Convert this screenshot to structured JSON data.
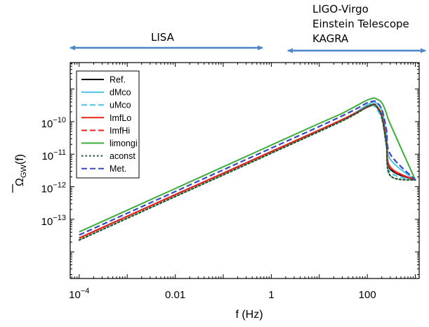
{
  "chart_data": {
    "type": "line",
    "xlabel": "f (Hz)",
    "ylabel": "Ω̄GW(f)",
    "ylabel_main": "Ω",
    "ylabel_sub": "GW",
    "ylabel_tail": "(f)",
    "xscale": "log",
    "yscale": "log",
    "xlim": [
      6.5e-05,
      1200
    ],
    "ylim": [
      1.52e-15,
      6.5e-09
    ],
    "x_ticks": [
      {
        "value": 0.0001,
        "base": "10",
        "exp": "−4"
      },
      {
        "value": 0.01,
        "text": "0.01"
      },
      {
        "value": 1,
        "text": "1"
      },
      {
        "value": 100,
        "text": "100"
      }
    ],
    "y_ticks": [
      {
        "value": 1e-10,
        "base": "10",
        "exp": "−10"
      },
      {
        "value": 1e-11,
        "base": "10",
        "exp": "−11"
      },
      {
        "value": 1e-12,
        "base": "10",
        "exp": "−12"
      },
      {
        "value": 1e-13,
        "base": "10",
        "exp": "−13"
      }
    ],
    "bands": [
      {
        "label": "LISA",
        "x_range": [
          0.0001,
          0.7
        ]
      },
      {
        "label": "LIGO-Virgo",
        "x_range": [
          2,
          1000
        ]
      },
      {
        "label": "Einstein Telescope",
        "x_range": [
          2,
          1000
        ]
      },
      {
        "label": "KAGRA",
        "x_range": [
          2,
          1000
        ]
      }
    ],
    "legend_position": "top-left",
    "series": [
      {
        "name": "Ref.",
        "color": "#000000",
        "dash": "solid",
        "x": [
          0.0001,
          0.001,
          0.01,
          0.1,
          1,
          10,
          30,
          60,
          100,
          130,
          150,
          200,
          250,
          300,
          1000
        ],
        "y": [
          2.65e-14,
          1.23e-13,
          5.7e-13,
          2.6e-12,
          1.2e-11,
          5.5e-11,
          1.15e-10,
          1.9e-10,
          2.8e-10,
          3.2e-10,
          3e-10,
          1.45e-10,
          2.2e-11,
          3.5e-12,
          1.6e-12
        ]
      },
      {
        "name": "dMco",
        "color": "#4cc3e8",
        "dash": "solid",
        "x": [
          0.0001,
          0.001,
          0.01,
          0.1,
          1,
          10,
          30,
          60,
          100,
          130,
          150,
          200,
          250,
          300,
          1000
        ],
        "y": [
          2.65e-14,
          1.23e-13,
          5.7e-13,
          2.6e-12,
          1.2e-11,
          5.5e-11,
          1.15e-10,
          2e-10,
          3.3e-10,
          3.9e-10,
          3.8e-10,
          2.2e-10,
          4e-11,
          7e-12,
          1.6e-12
        ]
      },
      {
        "name": "uMco",
        "color": "#4cc3e8",
        "dash": "dashed",
        "x": [
          0.0001,
          0.001,
          0.01,
          0.1,
          1,
          10,
          30,
          60,
          100,
          130,
          150,
          200,
          250,
          300,
          1000
        ],
        "y": [
          2.65e-14,
          1.23e-13,
          5.7e-13,
          2.6e-12,
          1.2e-11,
          5.5e-11,
          1.15e-10,
          1.9e-10,
          2.8e-10,
          3.1e-10,
          2.7e-10,
          1.2e-10,
          1.8e-11,
          2.8e-12,
          1.6e-12
        ]
      },
      {
        "name": "ImfLo",
        "color": "#e8231c",
        "dash": "solid",
        "x": [
          0.0001,
          0.001,
          0.01,
          0.1,
          1,
          10,
          30,
          60,
          100,
          130,
          150,
          200,
          250,
          300,
          1000
        ],
        "y": [
          2.65e-14,
          1.23e-13,
          5.7e-13,
          2.6e-12,
          1.2e-11,
          5.5e-11,
          1.15e-10,
          1.9e-10,
          2.9e-10,
          3.4e-10,
          3.2e-10,
          1.6e-10,
          2.5e-11,
          4e-12,
          1.6e-12
        ]
      },
      {
        "name": "ImfHi",
        "color": "#e8231c",
        "dash": "dashed",
        "x": [
          0.0001,
          0.001,
          0.01,
          0.1,
          1,
          10,
          30,
          60,
          100,
          130,
          150,
          200,
          250,
          300,
          1000
        ],
        "y": [
          2.65e-14,
          1.23e-13,
          5.7e-13,
          2.6e-12,
          1.2e-11,
          5.5e-11,
          1.15e-10,
          1.9e-10,
          2.8e-10,
          3.3e-10,
          3.1e-10,
          1.5e-10,
          2.4e-11,
          3.8e-12,
          1.6e-12
        ]
      },
      {
        "name": "limongi",
        "color": "#3cae3c",
        "dash": "solid",
        "x": [
          0.0001,
          0.001,
          0.01,
          0.1,
          1,
          10,
          30,
          60,
          100,
          130,
          150,
          200,
          250,
          300,
          1000
        ],
        "y": [
          4.1e-14,
          1.9e-13,
          8.8e-13,
          4.1e-12,
          1.9e-11,
          8.8e-11,
          1.8e-10,
          3.1e-10,
          4.6e-10,
          5.2e-10,
          5.1e-10,
          3.8e-10,
          1.8e-10,
          8.5e-11,
          1.6e-12
        ]
      },
      {
        "name": "aconst",
        "color": "#1f5a2e",
        "dash": "dotted",
        "x": [
          0.0001,
          0.001,
          0.01,
          0.1,
          1,
          10,
          30,
          60,
          100,
          130,
          150,
          200,
          250,
          300,
          1000
        ],
        "y": [
          2.3e-14,
          1.07e-13,
          5e-13,
          2.3e-12,
          1.07e-11,
          5e-11,
          1.05e-10,
          1.8e-10,
          2.9e-10,
          3.3e-10,
          3.1e-10,
          1.4e-10,
          1.8e-11,
          2.2e-12,
          1.6e-12
        ]
      },
      {
        "name": "Met.",
        "color": "#3a48c4",
        "dash": "dashed",
        "x": [
          0.0001,
          0.001,
          0.01,
          0.1,
          1,
          10,
          30,
          60,
          100,
          130,
          150,
          200,
          250,
          300,
          1000
        ],
        "y": [
          3.3e-14,
          1.53e-13,
          7.1e-13,
          3.3e-12,
          1.53e-11,
          7.1e-11,
          1.5e-10,
          2.5e-10,
          3.8e-10,
          4.2e-10,
          4.1e-10,
          2.4e-10,
          5.6e-11,
          1e-11,
          1.6e-12
        ]
      }
    ]
  }
}
